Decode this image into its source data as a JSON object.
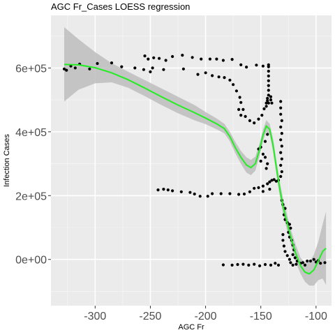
{
  "chart_data": {
    "type": "scatter",
    "title": "AGC Fr_Cases LOESS regression",
    "xlabel": "AGC Fr",
    "ylabel": "Infection Cases",
    "xlim": [
      -340,
      -86
    ],
    "ylim": [
      -145000,
      765000
    ],
    "x_ticks": [
      -300,
      -250,
      -200,
      -150,
      -100
    ],
    "x_tick_labels": [
      "-300",
      "-250",
      "-200",
      "-150",
      "-100"
    ],
    "y_ticks": [
      0,
      200000,
      400000,
      600000
    ],
    "y_tick_labels": [
      "0e+00",
      "2e+05",
      "4e+05",
      "6e+05"
    ],
    "grid": true,
    "legend": "none",
    "colors": {
      "panel": "#ebebeb",
      "grid_major": "#ffffff",
      "points": "#000000",
      "smooth_line": "#22ee22",
      "confidence_band": "#bdbdbd"
    },
    "series": [
      {
        "kind": "points",
        "points": [
          [
            -328,
            597000
          ],
          [
            -326,
            593000
          ],
          [
            -322,
            606000
          ],
          [
            -318,
            600000
          ],
          [
            -314,
            612000
          ],
          [
            -305,
            597000
          ],
          [
            -298,
            614000
          ],
          [
            -285,
            616000
          ],
          [
            -276,
            604000
          ],
          [
            -264,
            600000
          ],
          [
            -256,
            595000
          ],
          [
            -250,
            588000
          ],
          [
            -248,
            600000
          ],
          [
            -238,
            595000
          ],
          [
            -220,
            597000
          ],
          [
            -255,
            638000
          ],
          [
            -252,
            628000
          ],
          [
            -247,
            632000
          ],
          [
            -242,
            630000
          ],
          [
            -236,
            624000
          ],
          [
            -230,
            636000
          ],
          [
            -221,
            640000
          ],
          [
            -212,
            633000
          ],
          [
            -204,
            628000
          ],
          [
            -196,
            628000
          ],
          [
            -190,
            628000
          ],
          [
            -184,
            624000
          ],
          [
            -176,
            627000
          ],
          [
            -168,
            610000
          ],
          [
            -163,
            603000
          ],
          [
            -154,
            609000
          ],
          [
            -148,
            606000
          ],
          [
            -143,
            604000
          ],
          [
            -207,
            580000
          ],
          [
            -200,
            585000
          ],
          [
            -194,
            576000
          ],
          [
            -188,
            572000
          ],
          [
            -183,
            570000
          ],
          [
            -178,
            562000
          ],
          [
            -175,
            548000
          ],
          [
            -172,
            528000
          ],
          [
            -169,
            508000
          ],
          [
            -168,
            492000
          ],
          [
            -170,
            470000
          ],
          [
            -168,
            452000
          ],
          [
            -166,
            470000
          ],
          [
            -164,
            448000
          ],
          [
            -160,
            435000
          ],
          [
            -156,
            428000
          ],
          [
            -152,
            440000
          ],
          [
            -149,
            452000
          ],
          [
            -147,
            472000
          ],
          [
            -145,
            490000
          ],
          [
            -144,
            498000
          ],
          [
            -144,
            392000
          ],
          [
            -146,
            370000
          ],
          [
            -150,
            352000
          ],
          [
            -152,
            346000
          ],
          [
            -148,
            330000
          ],
          [
            -146,
            320000
          ],
          [
            -150,
            308000
          ],
          [
            -144,
            300000
          ],
          [
            -145,
            285000
          ],
          [
            -143,
            610000
          ],
          [
            -143,
            590000
          ],
          [
            -143,
            575000
          ],
          [
            -143,
            560000
          ],
          [
            -143,
            545000
          ],
          [
            -143,
            530000
          ],
          [
            -143,
            515000
          ],
          [
            -144,
            505000
          ],
          [
            -143,
            490000
          ],
          [
            -145,
            480000
          ],
          [
            -140,
            490000
          ],
          [
            -141,
            500000
          ],
          [
            -141,
            510000
          ],
          [
            -132,
            495000
          ],
          [
            -132,
            475000
          ],
          [
            -132,
            455000
          ],
          [
            -131,
            435000
          ],
          [
            -132,
            415000
          ],
          [
            -131,
            395000
          ],
          [
            -132,
            375000
          ],
          [
            -131,
            355000
          ],
          [
            -132,
            335000
          ],
          [
            -131,
            315000
          ],
          [
            -132,
            295000
          ],
          [
            -131,
            275000
          ],
          [
            -132,
            260000
          ],
          [
            -134,
            248000
          ],
          [
            -136,
            245000
          ],
          [
            -138,
            250000
          ],
          [
            -140,
            248000
          ],
          [
            -142,
            243000
          ],
          [
            -144,
            237000
          ],
          [
            -148,
            230000
          ],
          [
            -152,
            225000
          ],
          [
            -156,
            223000
          ],
          [
            -160,
            212000
          ],
          [
            -165,
            205000
          ],
          [
            -170,
            204000
          ],
          [
            -178,
            206000
          ],
          [
            -186,
            206000
          ],
          [
            -194,
            206000
          ],
          [
            -198,
            198000
          ],
          [
            -205,
            198000
          ],
          [
            -210,
            205000
          ],
          [
            -214,
            210000
          ],
          [
            -222,
            212000
          ],
          [
            -230,
            215000
          ],
          [
            -234,
            218000
          ],
          [
            -238,
            220000
          ],
          [
            -243,
            218000
          ],
          [
            -148,
            213000
          ],
          [
            -142,
            220000
          ],
          [
            -131,
            185000
          ],
          [
            -130,
            172000
          ],
          [
            -128,
            160000
          ],
          [
            -129,
            140000
          ],
          [
            -128,
            125000
          ],
          [
            -126,
            115000
          ],
          [
            -124,
            110000
          ],
          [
            -123,
            98000
          ],
          [
            -125,
            85000
          ],
          [
            -124,
            70000
          ],
          [
            -122,
            60000
          ],
          [
            -121,
            45000
          ],
          [
            -120,
            30000
          ],
          [
            -121,
            15000
          ],
          [
            -119,
            5000
          ],
          [
            -117,
            -5000
          ],
          [
            -114,
            -12000
          ],
          [
            -110,
            -18000
          ],
          [
            -130,
            78000
          ],
          [
            -130,
            60000
          ],
          [
            -129,
            42000
          ],
          [
            -128,
            25000
          ],
          [
            -126,
            12000
          ],
          [
            -124,
            0
          ],
          [
            -123,
            -10000
          ],
          [
            -121,
            -18000
          ],
          [
            -118,
            -15000
          ],
          [
            -105,
            -5000
          ],
          [
            -100,
            -8000
          ],
          [
            -96,
            -12000
          ],
          [
            -92,
            -10000
          ],
          [
            -112,
            -10000
          ],
          [
            -108,
            -5000
          ],
          [
            -102,
            0
          ],
          [
            -98,
            -4000
          ],
          [
            -184,
            -17000
          ],
          [
            -176,
            -18000
          ],
          [
            -171,
            -16000
          ],
          [
            -166,
            -15000
          ],
          [
            -161,
            -18000
          ],
          [
            -156,
            -15000
          ],
          [
            -151,
            -20000
          ],
          [
            -146,
            -16000
          ],
          [
            -141,
            -18000
          ],
          [
            -137,
            -12000
          ],
          [
            -134,
            -18000
          ]
        ]
      },
      {
        "kind": "loess_smooth",
        "fit": [
          [
            -328,
            611000
          ],
          [
            -315,
            610000
          ],
          [
            -300,
            601000
          ],
          [
            -285,
            585000
          ],
          [
            -270,
            563000
          ],
          [
            -255,
            537000
          ],
          [
            -240,
            510000
          ],
          [
            -225,
            484000
          ],
          [
            -210,
            460000
          ],
          [
            -200,
            443000
          ],
          [
            -190,
            425000
          ],
          [
            -183,
            410000
          ],
          [
            -178,
            385000
          ],
          [
            -173,
            350000
          ],
          [
            -168,
            320000
          ],
          [
            -163,
            296000
          ],
          [
            -159,
            288000
          ],
          [
            -155,
            300000
          ],
          [
            -151,
            345000
          ],
          [
            -148,
            390000
          ],
          [
            -145,
            418000
          ],
          [
            -142,
            408000
          ],
          [
            -139,
            360000
          ],
          [
            -136,
            290000
          ],
          [
            -133,
            225000
          ],
          [
            -130,
            168000
          ],
          [
            -126,
            113000
          ],
          [
            -122,
            60000
          ],
          [
            -118,
            15000
          ],
          [
            -114,
            -20000
          ],
          [
            -110,
            -40000
          ],
          [
            -106,
            -45000
          ],
          [
            -102,
            -33000
          ],
          [
            -98,
            -5000
          ],
          [
            -94,
            25000
          ],
          [
            -91,
            35000
          ]
        ],
        "upper": [
          [
            -328,
            728000
          ],
          [
            -315,
            690000
          ],
          [
            -300,
            650000
          ],
          [
            -285,
            615000
          ],
          [
            -270,
            588000
          ],
          [
            -255,
            562000
          ],
          [
            -240,
            536000
          ],
          [
            -225,
            510000
          ],
          [
            -210,
            484000
          ],
          [
            -200,
            462000
          ],
          [
            -190,
            442000
          ],
          [
            -183,
            425000
          ],
          [
            -178,
            400000
          ],
          [
            -173,
            368000
          ],
          [
            -168,
            340000
          ],
          [
            -163,
            320000
          ],
          [
            -159,
            312000
          ],
          [
            -155,
            322000
          ],
          [
            -151,
            365000
          ],
          [
            -148,
            408000
          ],
          [
            -145,
            436000
          ],
          [
            -142,
            425000
          ],
          [
            -139,
            380000
          ],
          [
            -136,
            312000
          ],
          [
            -133,
            248000
          ],
          [
            -130,
            192000
          ],
          [
            -126,
            138000
          ],
          [
            -122,
            85000
          ],
          [
            -118,
            42000
          ],
          [
            -114,
            5000
          ],
          [
            -110,
            -10000
          ],
          [
            -106,
            -8000
          ],
          [
            -102,
            15000
          ],
          [
            -98,
            55000
          ],
          [
            -94,
            110000
          ],
          [
            -91,
            150000
          ]
        ],
        "lower": [
          [
            -328,
            495000
          ],
          [
            -315,
            532000
          ],
          [
            -300,
            552000
          ],
          [
            -285,
            555000
          ],
          [
            -270,
            538000
          ],
          [
            -255,
            512000
          ],
          [
            -240,
            484000
          ],
          [
            -225,
            458000
          ],
          [
            -210,
            436000
          ],
          [
            -200,
            424000
          ],
          [
            -190,
            408000
          ],
          [
            -183,
            395000
          ],
          [
            -178,
            370000
          ],
          [
            -173,
            332000
          ],
          [
            -168,
            300000
          ],
          [
            -163,
            272000
          ],
          [
            -159,
            264000
          ],
          [
            -155,
            278000
          ],
          [
            -151,
            325000
          ],
          [
            -148,
            372000
          ],
          [
            -145,
            400000
          ],
          [
            -142,
            391000
          ],
          [
            -139,
            340000
          ],
          [
            -136,
            268000
          ],
          [
            -133,
            202000
          ],
          [
            -130,
            144000
          ],
          [
            -126,
            88000
          ],
          [
            -122,
            35000
          ],
          [
            -118,
            -12000
          ],
          [
            -114,
            -45000
          ],
          [
            -110,
            -70000
          ],
          [
            -106,
            -82000
          ],
          [
            -102,
            -82000
          ],
          [
            -98,
            -65000
          ],
          [
            -94,
            -60000
          ],
          [
            -91,
            -80000
          ]
        ]
      }
    ]
  }
}
